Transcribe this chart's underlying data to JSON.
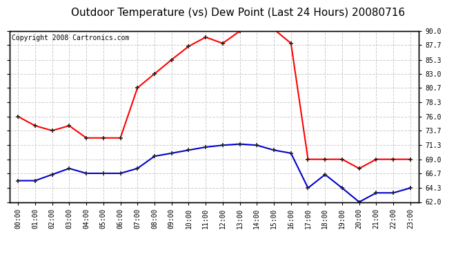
{
  "title": "Outdoor Temperature (vs) Dew Point (Last 24 Hours) 20080716",
  "copyright": "Copyright 2008 Cartronics.com",
  "hours": [
    "00:00",
    "01:00",
    "02:00",
    "03:00",
    "04:00",
    "05:00",
    "06:00",
    "07:00",
    "08:00",
    "09:00",
    "10:00",
    "11:00",
    "12:00",
    "13:00",
    "14:00",
    "15:00",
    "16:00",
    "17:00",
    "18:00",
    "19:00",
    "20:00",
    "21:00",
    "22:00",
    "23:00"
  ],
  "temp": [
    76.0,
    74.5,
    73.7,
    74.5,
    72.5,
    72.5,
    72.5,
    80.7,
    83.0,
    85.3,
    87.5,
    89.0,
    88.0,
    90.0,
    90.3,
    90.3,
    88.0,
    69.0,
    69.0,
    69.0,
    67.5,
    69.0,
    69.0,
    69.0
  ],
  "dew": [
    65.5,
    65.5,
    66.5,
    67.5,
    66.7,
    66.7,
    66.7,
    67.5,
    69.5,
    70.0,
    70.5,
    71.0,
    71.3,
    71.5,
    71.3,
    70.5,
    70.0,
    64.3,
    66.5,
    64.3,
    62.0,
    63.5,
    63.5,
    64.3
  ],
  "temp_color": "#ff0000",
  "dew_color": "#0000cc",
  "bg_color": "#ffffff",
  "plot_bg_color": "#ffffff",
  "grid_color": "#cccccc",
  "ylim_min": 62.0,
  "ylim_max": 90.0,
  "yticks": [
    62.0,
    64.3,
    66.7,
    69.0,
    71.3,
    73.7,
    76.0,
    78.3,
    80.7,
    83.0,
    85.3,
    87.7,
    90.0
  ],
  "ytick_labels": [
    "62.0",
    "64.3",
    "66.7",
    "69.0",
    "71.3",
    "73.7",
    "76.0",
    "78.3",
    "80.7",
    "83.0",
    "85.3",
    "87.7",
    "90.0"
  ],
  "title_fontsize": 11,
  "copyright_fontsize": 7,
  "tick_fontsize": 7,
  "marker_style": "+",
  "marker_size": 5,
  "linewidth": 1.5
}
